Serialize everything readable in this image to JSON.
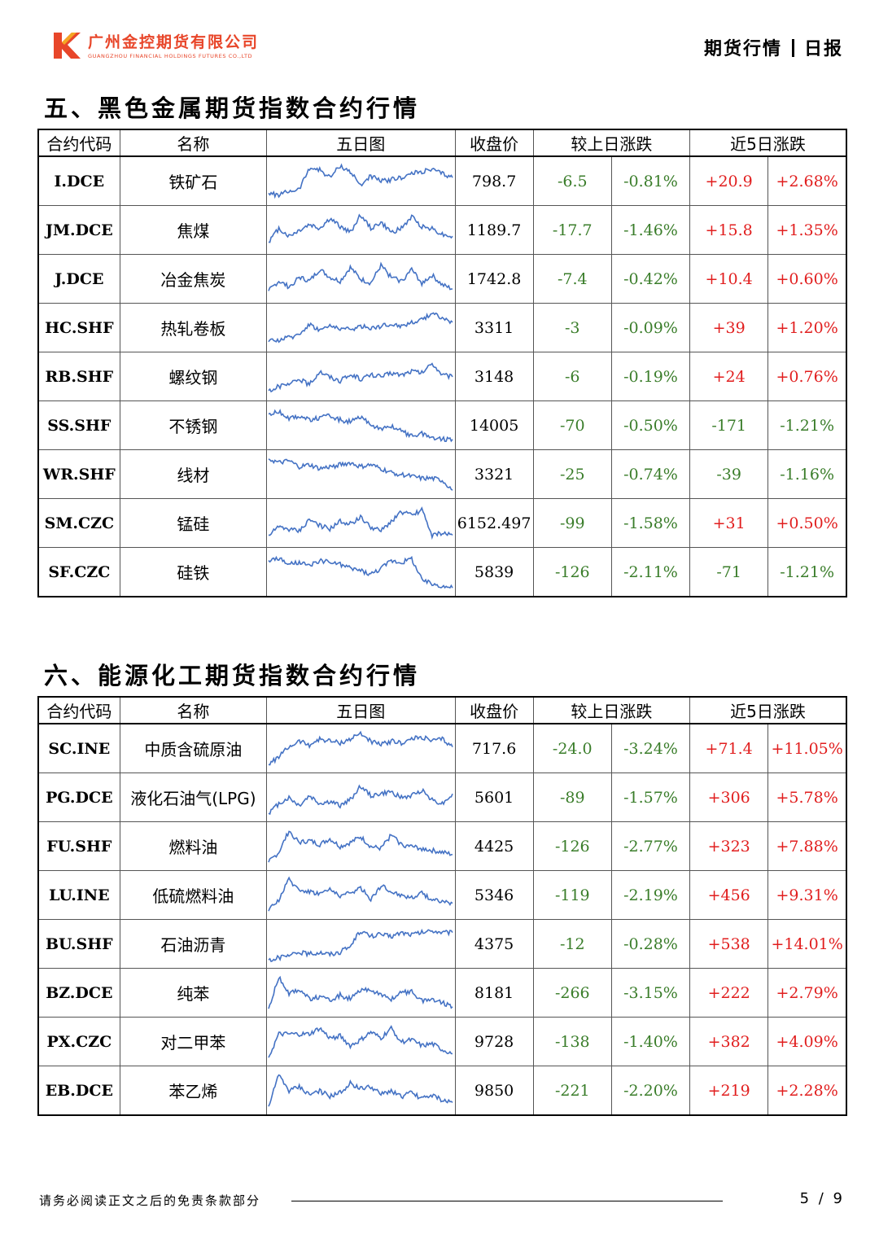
{
  "header": {
    "company_cn": "广州金控期货有限公司",
    "company_en": "GUANGZHOU FINANCIAL HOLDINGS FUTURES CO.,LTD",
    "report_type": "期货行情",
    "report_freq": "日报",
    "brand_color": "#e8462a"
  },
  "columns": {
    "code": "合约代码",
    "name": "名称",
    "chart": "五日图",
    "close": "收盘价",
    "daily": "较上日涨跌",
    "five_day": "近5日涨跌"
  },
  "section5": {
    "title": "五、黑色金属期货指数合约行情",
    "rows": [
      {
        "code": "I.DCE",
        "name": "铁矿石",
        "close": "798.7",
        "chg": "-6.5",
        "pct": "-0.81%",
        "chg5": "+20.9",
        "pct5": "+2.68%",
        "spark": [
          0.2,
          0.15,
          0.25,
          0.3,
          0.85,
          0.8,
          0.6,
          0.9,
          0.75,
          0.4,
          0.65,
          0.5,
          0.55,
          0.6,
          0.7,
          0.75,
          0.8,
          0.7,
          0.6
        ]
      },
      {
        "code": "JM.DCE",
        "name": "焦煤",
        "close": "1189.7",
        "chg": "-17.7",
        "pct": "-1.46%",
        "chg5": "+15.8",
        "pct5": "+1.35%",
        "spark": [
          0.2,
          0.55,
          0.35,
          0.5,
          0.65,
          0.55,
          0.8,
          0.6,
          0.45,
          0.9,
          0.55,
          0.7,
          0.45,
          0.55,
          0.85,
          0.6,
          0.55,
          0.4,
          0.35
        ]
      },
      {
        "code": "J.DCE",
        "name": "冶金焦炭",
        "close": "1742.8",
        "chg": "-7.4",
        "pct": "-0.42%",
        "chg5": "+10.4",
        "pct5": "+0.60%",
        "spark": [
          0.2,
          0.45,
          0.3,
          0.55,
          0.45,
          0.75,
          0.55,
          0.45,
          0.8,
          0.5,
          0.4,
          0.85,
          0.55,
          0.45,
          0.75,
          0.4,
          0.6,
          0.35,
          0.25
        ]
      },
      {
        "code": "HC.SHF",
        "name": "热轧卷板",
        "close": "3311",
        "chg": "-3",
        "pct": "-0.09%",
        "chg5": "+39",
        "pct5": "+1.20%",
        "spark": [
          0.15,
          0.2,
          0.25,
          0.35,
          0.6,
          0.45,
          0.55,
          0.5,
          0.45,
          0.55,
          0.5,
          0.55,
          0.6,
          0.55,
          0.65,
          0.7,
          0.9,
          0.75,
          0.65
        ]
      },
      {
        "code": "RB.SHF",
        "name": "螺纹钢",
        "close": "3148",
        "chg": "-6",
        "pct": "-0.19%",
        "chg5": "+24",
        "pct5": "+0.76%",
        "spark": [
          0.15,
          0.25,
          0.3,
          0.45,
          0.3,
          0.65,
          0.5,
          0.4,
          0.55,
          0.45,
          0.55,
          0.5,
          0.6,
          0.55,
          0.65,
          0.6,
          0.85,
          0.55,
          0.5
        ]
      },
      {
        "code": "SS.SHF",
        "name": "不锈钢",
        "close": "14005",
        "chg": "-70",
        "pct": "-0.50%",
        "chg5": "-171",
        "pct5": "-1.21%",
        "spark": [
          0.8,
          0.85,
          0.7,
          0.75,
          0.65,
          0.7,
          0.75,
          0.65,
          0.6,
          0.7,
          0.55,
          0.4,
          0.5,
          0.35,
          0.25,
          0.3,
          0.2,
          0.15,
          0.15
        ]
      },
      {
        "code": "WR.SHF",
        "name": "线材",
        "close": "3321",
        "chg": "-25",
        "pct": "-0.74%",
        "chg5": "-39",
        "pct5": "-1.16%",
        "spark": [
          0.9,
          0.8,
          0.85,
          0.7,
          0.75,
          0.65,
          0.7,
          0.75,
          0.8,
          0.7,
          0.75,
          0.65,
          0.55,
          0.5,
          0.45,
          0.4,
          0.4,
          0.35,
          0.1
        ]
      },
      {
        "code": "SM.CZC",
        "name": "锰硅",
        "close": "6152.497",
        "chg": "-99",
        "pct": "-1.58%",
        "chg5": "+31",
        "pct5": "+0.50%",
        "spark": [
          0.2,
          0.4,
          0.35,
          0.3,
          0.6,
          0.45,
          0.35,
          0.55,
          0.5,
          0.65,
          0.4,
          0.3,
          0.55,
          0.8,
          0.7,
          0.85,
          0.2,
          0.25,
          0.2
        ]
      },
      {
        "code": "SF.CZC",
        "name": "硅铁",
        "close": "5839",
        "chg": "-126",
        "pct": "-2.11%",
        "chg5": "-71",
        "pct5": "-1.21%",
        "spark": [
          0.8,
          0.85,
          0.7,
          0.75,
          0.65,
          0.8,
          0.75,
          0.7,
          0.6,
          0.55,
          0.45,
          0.6,
          0.8,
          0.75,
          0.85,
          0.3,
          0.2,
          0.15,
          0.1
        ]
      }
    ]
  },
  "section6": {
    "title": "六、能源化工期货指数合约行情",
    "rows": [
      {
        "code": "SC.INE",
        "name": "中质含硫原油",
        "close": "717.6",
        "chg": "-24.0",
        "pct": "-3.24%",
        "chg5": "+71.4",
        "pct5": "+11.05%",
        "spark": [
          0.1,
          0.3,
          0.55,
          0.7,
          0.6,
          0.75,
          0.7,
          0.65,
          0.75,
          0.9,
          0.7,
          0.6,
          0.7,
          0.65,
          0.75,
          0.8,
          0.7,
          0.75,
          0.55
        ]
      },
      {
        "code": "PG.DCE",
        "name": "液化石油气(LPG)",
        "close": "5601",
        "chg": "-89",
        "pct": "-1.57%",
        "chg5": "+306",
        "pct5": "+5.78%",
        "spark": [
          0.1,
          0.35,
          0.5,
          0.3,
          0.55,
          0.35,
          0.4,
          0.3,
          0.45,
          0.8,
          0.55,
          0.6,
          0.65,
          0.5,
          0.55,
          0.7,
          0.45,
          0.35,
          0.6
        ]
      },
      {
        "code": "FU.SHF",
        "name": "燃料油",
        "close": "4425",
        "chg": "-126",
        "pct": "-2.77%",
        "chg5": "+323",
        "pct5": "+7.88%",
        "spark": [
          0.1,
          0.35,
          0.9,
          0.6,
          0.65,
          0.55,
          0.7,
          0.5,
          0.6,
          0.75,
          0.5,
          0.45,
          0.8,
          0.55,
          0.5,
          0.45,
          0.4,
          0.35,
          0.3
        ]
      },
      {
        "code": "LU.INE",
        "name": "低硫燃料油",
        "close": "5346",
        "chg": "-119",
        "pct": "-2.19%",
        "chg5": "+456",
        "pct5": "+9.31%",
        "spark": [
          0.1,
          0.4,
          0.9,
          0.65,
          0.6,
          0.55,
          0.65,
          0.5,
          0.55,
          0.7,
          0.4,
          0.75,
          0.6,
          0.5,
          0.45,
          0.55,
          0.4,
          0.35,
          0.3
        ]
      },
      {
        "code": "BU.SHF",
        "name": "石油沥青",
        "close": "4375",
        "chg": "-12",
        "pct": "-0.28%",
        "chg5": "+538",
        "pct5": "+14.01%",
        "spark": [
          0.1,
          0.15,
          0.2,
          0.3,
          0.25,
          0.3,
          0.25,
          0.3,
          0.45,
          0.85,
          0.7,
          0.75,
          0.7,
          0.8,
          0.75,
          0.8,
          0.85,
          0.8,
          0.8
        ]
      },
      {
        "code": "BZ.DCE",
        "name": "纯苯",
        "close": "8181",
        "chg": "-266",
        "pct": "-3.15%",
        "chg5": "+222",
        "pct5": "+2.79%",
        "spark": [
          0.1,
          0.9,
          0.5,
          0.6,
          0.35,
          0.4,
          0.3,
          0.45,
          0.35,
          0.55,
          0.6,
          0.45,
          0.35,
          0.5,
          0.55,
          0.3,
          0.35,
          0.25,
          0.15
        ]
      },
      {
        "code": "PX.CZC",
        "name": "对二甲苯",
        "close": "9728",
        "chg": "-138",
        "pct": "-1.40%",
        "chg5": "+382",
        "pct5": "+4.09%",
        "spark": [
          0.1,
          0.7,
          0.7,
          0.7,
          0.7,
          0.85,
          0.6,
          0.65,
          0.4,
          0.55,
          0.75,
          0.6,
          0.85,
          0.5,
          0.55,
          0.4,
          0.45,
          0.3,
          0.2
        ]
      },
      {
        "code": "EB.DCE",
        "name": "苯乙烯",
        "close": "9850",
        "chg": "-221",
        "pct": "-2.20%",
        "chg5": "+219",
        "pct5": "+2.28%",
        "spark": [
          0.1,
          0.9,
          0.5,
          0.6,
          0.4,
          0.5,
          0.35,
          0.45,
          0.7,
          0.55,
          0.6,
          0.4,
          0.5,
          0.35,
          0.45,
          0.3,
          0.4,
          0.25,
          0.2
        ]
      }
    ]
  },
  "footer": {
    "disclaimer": "请务必阅读正文之后的免责条款部分",
    "page": "5 / 9"
  },
  "colors": {
    "negative": "#3a7d2a",
    "positive": "#e11e1e",
    "sparkline": "#4472c4"
  }
}
